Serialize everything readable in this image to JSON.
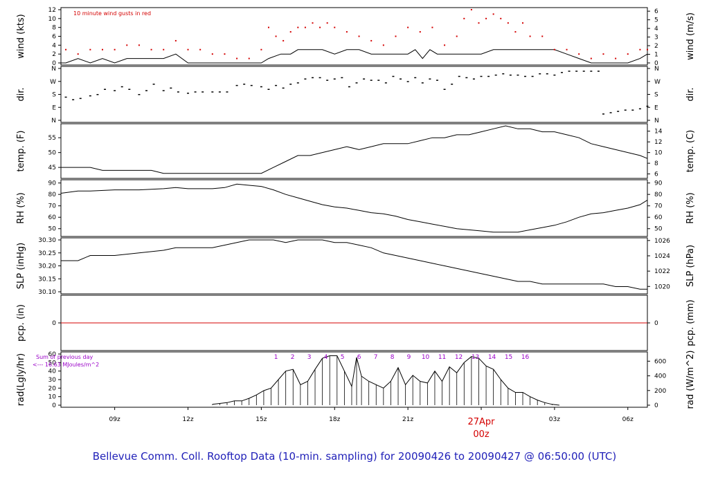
{
  "title": "Bellevue Comm. Coll. Rooftop Data (10-min. sampling) for 20090426  to  20090427 @ 06:50:00  (UTC)",
  "colors": {
    "gust": "#d40000",
    "line": "#000000",
    "rain": "#d40000",
    "solar_text": "#9a00c8",
    "date": "#d40000",
    "title": "#1f1fb8"
  },
  "x_axis": {
    "hour_offset_note_ticks": [
      "09z",
      "12z",
      "15z",
      "18z",
      "21z",
      "00z",
      "03z",
      "06z"
    ],
    "tick_hours": [
      9,
      12,
      15,
      18,
      21,
      24,
      27,
      30
    ],
    "tick_labels": [
      "09z",
      "12z",
      "15z",
      "18z",
      "21z",
      "",
      "03z",
      "06z"
    ],
    "date_label": "27Apr",
    "date_hour_label": "00z",
    "start_hour": 6.8,
    "end_hour": 30.8
  },
  "panels": {
    "wind": {
      "ylabel_left": "wind (kts)",
      "ylabel_right": "wind (m/s)",
      "left_ticks": [
        "0",
        "2",
        "4",
        "6",
        "8",
        "10",
        "12"
      ],
      "right_ticks": [
        "0",
        "1",
        "2",
        "3",
        "4",
        "5",
        "6"
      ],
      "legend": "10  minute wind gusts in red"
    },
    "dir": {
      "ylabel_left": "dir.",
      "ylabel_right": "dir.",
      "ticks": [
        "N",
        "E",
        "S",
        "W",
        "N"
      ]
    },
    "temp": {
      "ylabel_left": "temp. (F)",
      "ylabel_right": "temp. (C)",
      "left_ticks": [
        "45",
        "50",
        "55"
      ],
      "right_ticks": [
        "6",
        "8",
        "10",
        "12",
        "14"
      ]
    },
    "rh": {
      "ylabel_left": "RH (%)",
      "ylabel_right": "RH (%)",
      "ticks": [
        "50",
        "60",
        "70",
        "80",
        "90"
      ]
    },
    "slp": {
      "ylabel_left": "SLP (inHg)",
      "ylabel_right": "SLP (hPa)",
      "left_ticks": [
        "30.10",
        "30.15",
        "30.20",
        "30.25",
        "30.30"
      ],
      "right_ticks": [
        "1020",
        "1022",
        "1024",
        "1026"
      ]
    },
    "pcp": {
      "ylabel_left": "pcp. (in)",
      "ylabel_right": "pcp. (mm)",
      "left_ticks": [
        "0"
      ],
      "right_ticks": [
        "0"
      ]
    },
    "rad": {
      "ylabel_left": "rad(Lgly/hr)",
      "ylabel_right": "rad (W/m^2)",
      "left_ticks": [
        "0",
        "10",
        "20",
        "30",
        "40",
        "50",
        "60"
      ],
      "right_ticks": [
        "0",
        "200",
        "400",
        "600"
      ],
      "note_line1": "Sum of previous day",
      "note_line2": "<--- 16.63 MJoules/m^2",
      "hour_labels": [
        "1",
        "2",
        "3",
        "4",
        "5",
        "6",
        "7",
        "8",
        "9",
        "10",
        "11",
        "12",
        "13",
        "14",
        "15",
        "16"
      ]
    }
  },
  "chart_data": [
    {
      "type": "line",
      "name": "wind",
      "x_unit": "hour UTC (24 = 00z 27Apr)",
      "ylim": [
        0,
        12
      ],
      "series": [
        {
          "name": "wind (kts)",
          "x": [
            6.8,
            7.0,
            7.5,
            8.0,
            8.5,
            9.0,
            9.5,
            10.0,
            10.5,
            11.0,
            11.5,
            12.0,
            12.5,
            13.0,
            13.5,
            14.0,
            14.5,
            15.0,
            15.3,
            15.8,
            16.2,
            16.5,
            17.0,
            17.5,
            18.0,
            18.5,
            19.0,
            19.5,
            20.0,
            20.5,
            21.0,
            21.3,
            21.6,
            21.9,
            22.2,
            22.5,
            23.0,
            23.5,
            24.0,
            24.5,
            25.0,
            25.5,
            26.0,
            26.5,
            27.0,
            27.5,
            28.0,
            28.5,
            29.0,
            29.5,
            30.0,
            30.5,
            30.8
          ],
          "y": [
            0,
            0,
            1,
            0,
            1,
            0,
            1,
            1,
            1,
            1,
            2,
            0,
            0,
            0,
            0,
            0,
            0,
            0,
            1,
            2,
            2,
            3,
            3,
            3,
            2,
            3,
            3,
            2,
            2,
            2,
            2,
            3,
            1,
            3,
            2,
            2,
            2,
            2,
            2,
            3,
            3,
            3,
            3,
            3,
            3,
            2,
            1,
            0,
            0,
            0,
            0,
            1,
            2
          ]
        },
        {
          "name": "10  minute wind gusts in red",
          "x": [
            7.0,
            7.5,
            8.0,
            8.5,
            9.0,
            9.5,
            10.0,
            10.5,
            11.0,
            11.5,
            12.0,
            12.5,
            13.0,
            13.5,
            14.0,
            14.5,
            15.0,
            15.3,
            15.6,
            15.9,
            16.2,
            16.5,
            16.8,
            17.1,
            17.4,
            17.7,
            18.0,
            18.5,
            19.0,
            19.5,
            20.0,
            20.5,
            21.0,
            21.5,
            22.0,
            22.5,
            23.0,
            23.3,
            23.6,
            23.9,
            24.2,
            24.5,
            24.8,
            25.1,
            25.4,
            25.7,
            26.0,
            26.5,
            27.0,
            27.5,
            28.0,
            28.5,
            29.0,
            29.5,
            30.0,
            30.5,
            30.8
          ],
          "y": [
            3,
            2,
            3,
            3,
            3,
            4,
            4,
            3,
            3,
            5,
            3,
            3,
            2,
            2,
            1,
            1,
            3,
            8,
            6,
            5,
            7,
            8,
            8,
            9,
            8,
            9,
            8,
            7,
            6,
            5,
            4,
            6,
            8,
            7,
            8,
            4,
            6,
            10,
            12,
            9,
            10,
            11,
            10,
            9,
            7,
            9,
            6,
            6,
            3,
            3,
            2,
            1,
            2,
            1,
            2,
            3,
            3
          ]
        }
      ]
    },
    {
      "type": "scatter",
      "name": "wind direction",
      "ylim": [
        0,
        4
      ],
      "y_categories": [
        "N",
        "E",
        "S",
        "W",
        "N"
      ],
      "series": [
        {
          "name": "dir.",
          "x": [
            7.0,
            7.3,
            7.6,
            8.0,
            8.3,
            8.6,
            9.0,
            9.3,
            9.6,
            10.0,
            10.3,
            10.6,
            11.0,
            11.3,
            11.6,
            12.0,
            12.3,
            12.6,
            13.0,
            13.3,
            13.6,
            14.0,
            14.3,
            14.6,
            15.0,
            15.3,
            15.6,
            15.9,
            16.2,
            16.5,
            16.8,
            17.1,
            17.4,
            17.7,
            18.0,
            18.3,
            18.6,
            18.9,
            19.2,
            19.5,
            19.8,
            20.1,
            20.4,
            20.7,
            21.0,
            21.3,
            21.6,
            21.9,
            22.2,
            22.5,
            22.8,
            23.1,
            23.4,
            23.7,
            24.0,
            24.3,
            24.6,
            24.9,
            25.2,
            25.5,
            25.8,
            26.1,
            26.4,
            26.7,
            27.0,
            27.3,
            27.6,
            27.9,
            28.2,
            28.5,
            28.8,
            29.0,
            29.3,
            29.6,
            29.9,
            30.2,
            30.5,
            30.8
          ],
          "y": [
            1.8,
            1.6,
            1.7,
            1.9,
            2.0,
            2.4,
            2.3,
            2.6,
            2.4,
            2.0,
            2.3,
            2.8,
            2.3,
            2.5,
            2.2,
            2.1,
            2.2,
            2.2,
            2.2,
            2.2,
            2.2,
            2.7,
            2.8,
            2.7,
            2.6,
            2.4,
            2.7,
            2.5,
            2.8,
            2.9,
            3.2,
            3.3,
            3.3,
            3.1,
            3.2,
            3.3,
            2.6,
            2.9,
            3.2,
            3.1,
            3.1,
            2.9,
            3.4,
            3.2,
            3.0,
            3.3,
            2.9,
            3.2,
            3.1,
            2.4,
            2.8,
            3.4,
            3.3,
            3.2,
            3.4,
            3.4,
            3.5,
            3.6,
            3.5,
            3.5,
            3.4,
            3.4,
            3.6,
            3.6,
            3.5,
            3.7,
            3.8,
            3.8,
            3.8,
            3.8,
            3.8,
            0.5,
            0.6,
            0.7,
            0.8,
            0.8,
            0.9,
            1.1
          ]
        }
      ]
    },
    {
      "type": "line",
      "name": "temperature",
      "ylabel": "temp. (F)",
      "ylim": [
        42,
        59
      ],
      "series": [
        {
          "name": "temp. (F)",
          "x": [
            6.8,
            8.0,
            8.5,
            9.0,
            9.5,
            10.0,
            10.5,
            11.0,
            11.5,
            12.0,
            12.5,
            13.0,
            13.5,
            14.0,
            14.5,
            15.0,
            15.5,
            16.0,
            16.5,
            17.0,
            17.5,
            18.0,
            18.5,
            19.0,
            19.5,
            20.0,
            20.5,
            21.0,
            21.5,
            22.0,
            22.5,
            23.0,
            23.5,
            24.0,
            24.5,
            25.0,
            25.5,
            26.0,
            26.5,
            27.0,
            27.5,
            28.0,
            28.5,
            29.0,
            29.5,
            30.0,
            30.5,
            30.8
          ],
          "y": [
            45,
            45,
            44,
            44,
            44,
            44,
            44,
            43,
            43,
            43,
            43,
            43,
            43,
            43,
            43,
            43,
            45,
            47,
            49,
            49,
            50,
            51,
            52,
            51,
            52,
            53,
            53,
            53,
            54,
            55,
            55,
            56,
            56,
            57,
            58,
            59,
            58,
            58,
            57,
            57,
            56,
            55,
            53,
            52,
            51,
            50,
            49,
            48
          ]
        }
      ]
    },
    {
      "type": "line",
      "name": "relative humidity",
      "ylabel": "RH (%)",
      "ylim": [
        45,
        91
      ],
      "series": [
        {
          "name": "RH (%)",
          "x": [
            6.8,
            7.5,
            8.0,
            9.0,
            10.0,
            11.0,
            11.5,
            12.0,
            12.5,
            13.0,
            13.5,
            14.0,
            14.5,
            15.0,
            15.5,
            16.0,
            16.5,
            17.0,
            17.5,
            18.0,
            18.5,
            19.0,
            19.5,
            20.0,
            20.5,
            21.0,
            21.5,
            22.0,
            22.5,
            23.0,
            23.5,
            24.0,
            24.5,
            25.0,
            25.5,
            26.0,
            26.5,
            27.0,
            27.5,
            28.0,
            28.5,
            29.0,
            29.5,
            30.0,
            30.5,
            30.8
          ],
          "y": [
            81,
            83,
            83,
            84,
            84,
            85,
            86,
            85,
            85,
            85,
            86,
            89,
            88,
            87,
            84,
            80,
            77,
            74,
            71,
            69,
            68,
            66,
            64,
            63,
            61,
            58,
            56,
            54,
            52,
            50,
            49,
            48,
            47,
            47,
            47,
            49,
            51,
            53,
            56,
            60,
            63,
            64,
            66,
            68,
            71,
            75
          ]
        }
      ]
    },
    {
      "type": "line",
      "name": "sea level pressure",
      "ylabel": "SLP (inHg)",
      "ylim": [
        30.1,
        30.3
      ],
      "series": [
        {
          "name": "SLP (inHg)",
          "x": [
            6.8,
            7.5,
            8.0,
            9.0,
            10.0,
            11.0,
            11.5,
            12.0,
            12.5,
            13.0,
            13.5,
            14.0,
            14.5,
            15.0,
            15.5,
            16.0,
            16.5,
            17.0,
            17.5,
            18.0,
            18.5,
            19.0,
            19.5,
            20.0,
            20.5,
            21.0,
            21.5,
            22.0,
            22.5,
            23.0,
            23.5,
            24.0,
            24.5,
            25.0,
            25.5,
            26.0,
            26.5,
            27.0,
            27.5,
            28.0,
            28.5,
            29.0,
            29.5,
            30.0,
            30.5,
            30.8
          ],
          "y": [
            30.22,
            30.22,
            30.24,
            30.24,
            30.25,
            30.26,
            30.27,
            30.27,
            30.27,
            30.27,
            30.28,
            30.29,
            30.3,
            30.3,
            30.3,
            30.29,
            30.3,
            30.3,
            30.3,
            30.29,
            30.29,
            30.28,
            30.27,
            30.25,
            30.24,
            30.23,
            30.22,
            30.21,
            30.2,
            30.19,
            30.18,
            30.17,
            30.16,
            30.15,
            30.14,
            30.14,
            30.13,
            30.13,
            30.13,
            30.13,
            30.13,
            30.13,
            30.12,
            30.12,
            30.11,
            30.11
          ]
        }
      ]
    },
    {
      "type": "line",
      "name": "precipitation",
      "ylabel": "pcp. (in)",
      "series": [
        {
          "name": "pcp. (in)",
          "x": [
            6.8,
            30.8
          ],
          "y": [
            0,
            0
          ]
        }
      ]
    },
    {
      "type": "bar",
      "name": "solar radiation",
      "ylabel": "rad(Lgly/hr)",
      "ylim": [
        0,
        60
      ],
      "series": [
        {
          "name": "rad(Lgly/hr)",
          "x": [
            13.0,
            13.3,
            13.6,
            13.9,
            14.2,
            14.5,
            14.8,
            15.1,
            15.4,
            15.7,
            16.0,
            16.3,
            16.6,
            16.9,
            17.2,
            17.5,
            17.8,
            18.1,
            18.4,
            18.7,
            18.9,
            19.1,
            19.4,
            19.7,
            20.0,
            20.3,
            20.6,
            20.9,
            21.2,
            21.5,
            21.8,
            22.1,
            22.4,
            22.7,
            23.0,
            23.3,
            23.6,
            23.9,
            24.2,
            24.5,
            24.8,
            25.1,
            25.4,
            25.7,
            26.0,
            26.3,
            26.6,
            26.9,
            27.2
          ],
          "y": [
            1,
            2,
            3,
            5,
            5,
            8,
            12,
            17,
            20,
            30,
            40,
            42,
            24,
            28,
            42,
            55,
            58,
            58,
            40,
            22,
            56,
            34,
            28,
            24,
            20,
            28,
            44,
            24,
            35,
            28,
            26,
            40,
            28,
            45,
            38,
            50,
            57,
            55,
            46,
            42,
            30,
            20,
            15,
            15,
            10,
            6,
            3,
            1,
            0
          ]
        }
      ]
    }
  ]
}
